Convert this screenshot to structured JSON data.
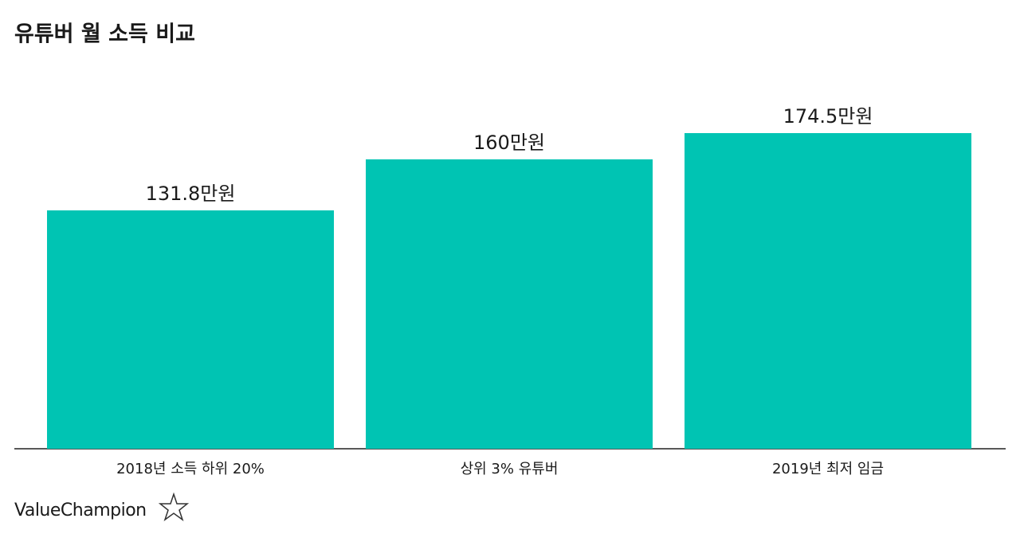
{
  "chart_data": {
    "type": "bar",
    "title": "유튜버 월 소득 비교",
    "categories": [
      "2018년 소득 하위 20%",
      "상위 3% 유튜버",
      "2019년 최저 임금"
    ],
    "values": [
      131.8,
      160,
      174.5
    ],
    "value_labels": [
      "131.8만원",
      "160만원",
      "174.5만원"
    ],
    "color": "#00c4b3"
  },
  "brand": "ValueChampion"
}
